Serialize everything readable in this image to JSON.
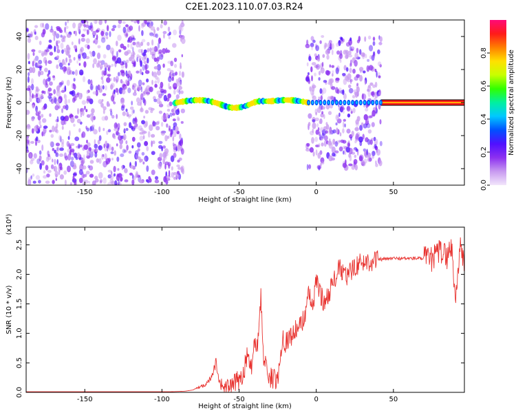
{
  "figure_title": "C2E1.2023.110.07.03.R24",
  "colors": {
    "snr_line": "#e8322f",
    "points_low": "#c8a8f0",
    "points_mid": "#7a18f0",
    "colormap": [
      "#f2e6fb",
      "#c89af0",
      "#8c30f0",
      "#5010ff",
      "#0050ff",
      "#00c8ff",
      "#00f0a0",
      "#30ff00",
      "#c8ff00",
      "#ffe000",
      "#ff8000",
      "#ff1a1a",
      "#ff0a78"
    ]
  },
  "chart_data": [
    {
      "type": "scatter",
      "subtype": "spectrogram",
      "title": "",
      "xlabel": "Height of straight line (km)",
      "ylabel": "Frequency (Hz)",
      "xlim": [
        -188,
        96
      ],
      "ylim": [
        -50,
        50
      ],
      "xticks": [
        -150,
        -100,
        -50,
        0,
        50
      ],
      "yticks": [
        -40,
        -20,
        0,
        20,
        40
      ],
      "grid": false,
      "regions": [
        {
          "name": "noise-wide",
          "x": [
            -188,
            -86
          ],
          "y": [
            -50,
            50
          ],
          "amplitude": 0.1
        },
        {
          "name": "wavy-band",
          "x": [
            -92,
            -5
          ],
          "y": [
            -6,
            6
          ],
          "amplitude": 0.45
        },
        {
          "name": "noise-mid",
          "x": [
            -6,
            42
          ],
          "y": [
            -40,
            40
          ],
          "amplitude": 0.12
        },
        {
          "name": "carrier",
          "x": [
            42,
            96
          ],
          "y": [
            -1,
            1
          ],
          "amplitude": 0.95
        }
      ],
      "colorbar": {
        "label": "Normalized spectral amplitude",
        "range": [
          0.0,
          1.0
        ],
        "ticks": [
          "0.0",
          "0.2",
          "0.4",
          "0.6",
          "0.8"
        ]
      }
    },
    {
      "type": "line",
      "title": "",
      "xlabel": "Height of straight line (km)",
      "ylabel": "SNR (10 * v/v)",
      "y_multiplier": "(x10⁴)",
      "xlim": [
        -188,
        96
      ],
      "ylim": [
        0,
        2.8
      ],
      "xticks": [
        -150,
        -100,
        -50,
        0,
        50
      ],
      "yticks": [
        "0.0",
        "0.5",
        "1.0",
        "1.5",
        "2.0",
        "2.5"
      ],
      "grid": false,
      "series": [
        {
          "x": [
            -188,
            -120,
            -95,
            -85,
            -80,
            -75,
            -70,
            -66,
            -65,
            -63,
            -60,
            -55,
            -50,
            -47,
            -45,
            -42,
            -40,
            -38,
            -36,
            -34,
            -32,
            -30,
            -25,
            -22,
            -20,
            -15,
            -10,
            -8,
            -5,
            -2,
            0,
            5,
            10,
            15,
            20,
            25,
            30,
            40,
            50,
            60,
            70,
            75,
            80,
            85,
            88,
            90,
            93,
            96
          ],
          "values": [
            0.01,
            0.01,
            0.01,
            0.02,
            0.04,
            0.1,
            0.18,
            0.4,
            0.55,
            0.2,
            0.08,
            0.1,
            0.22,
            0.35,
            0.6,
            0.45,
            0.9,
            0.75,
            1.65,
            0.55,
            0.4,
            0.25,
            0.2,
            0.95,
            0.85,
            1.0,
            1.15,
            1.25,
            1.65,
            1.45,
            1.9,
            1.5,
            1.8,
            2.1,
            1.95,
            2.15,
            2.2,
            2.25,
            2.27,
            2.27,
            2.27,
            2.25,
            2.4,
            2.3,
            2.5,
            1.5,
            2.45,
            2.2
          ]
        }
      ]
    }
  ]
}
